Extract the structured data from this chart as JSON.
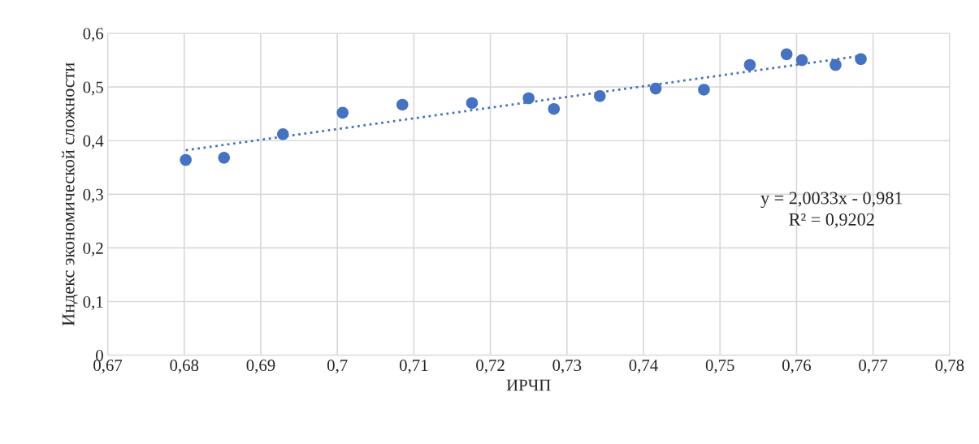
{
  "chart_data": {
    "type": "scatter",
    "xlabel": "ИРЧП",
    "ylabel": "Индекс экономической сложности",
    "xlim": [
      0.67,
      0.78
    ],
    "xticks": [
      {
        "value": 0.67,
        "label": "0,67"
      },
      {
        "value": 0.68,
        "label": "0,68"
      },
      {
        "value": 0.69,
        "label": "0,69"
      },
      {
        "value": 0.7,
        "label": "0,7"
      },
      {
        "value": 0.71,
        "label": "0,71"
      },
      {
        "value": 0.72,
        "label": "0,72"
      },
      {
        "value": 0.73,
        "label": "0,73"
      },
      {
        "value": 0.74,
        "label": "0,74"
      },
      {
        "value": 0.75,
        "label": "0,75"
      },
      {
        "value": 0.76,
        "label": "0,76"
      },
      {
        "value": 0.77,
        "label": "0,77"
      },
      {
        "value": 0.78,
        "label": "0,78"
      }
    ],
    "ylim": [
      0,
      0.6
    ],
    "yticks": [
      0,
      {
        "value": 0.1,
        "label": "0,1"
      },
      {
        "value": 0.2,
        "label": "0,2"
      },
      {
        "value": 0.3,
        "label": "0,3"
      },
      {
        "value": 0.4,
        "label": "0,4"
      },
      {
        "value": 0.5,
        "label": "0,5"
      },
      {
        "value": 0.6,
        "label": "0,6"
      }
    ],
    "grid": true,
    "series": [
      {
        "marker": "circle",
        "color": "#4472c4",
        "x": [
          0.6802,
          0.6852,
          0.6929,
          0.7007,
          0.7085,
          0.7176,
          0.725,
          0.7283,
          0.7343,
          0.7416,
          0.7479,
          0.7539,
          0.7587,
          0.7607,
          0.7651,
          0.7684
        ],
        "values": [
          0.364,
          0.368,
          0.412,
          0.452,
          0.467,
          0.47,
          0.479,
          0.459,
          0.483,
          0.497,
          0.495,
          0.541,
          0.561,
          0.55,
          0.541,
          0.552
        ]
      },
      {
        "type": "line",
        "marker": "none",
        "line_style": "dotted",
        "color": "#4472c4",
        "x": [
          0.6802,
          0.7684
        ],
        "values": [
          0.382,
          0.558
        ]
      }
    ],
    "annotations": [
      "y = 2,0033x - 0,981\nR² = 0,9202"
    ]
  }
}
